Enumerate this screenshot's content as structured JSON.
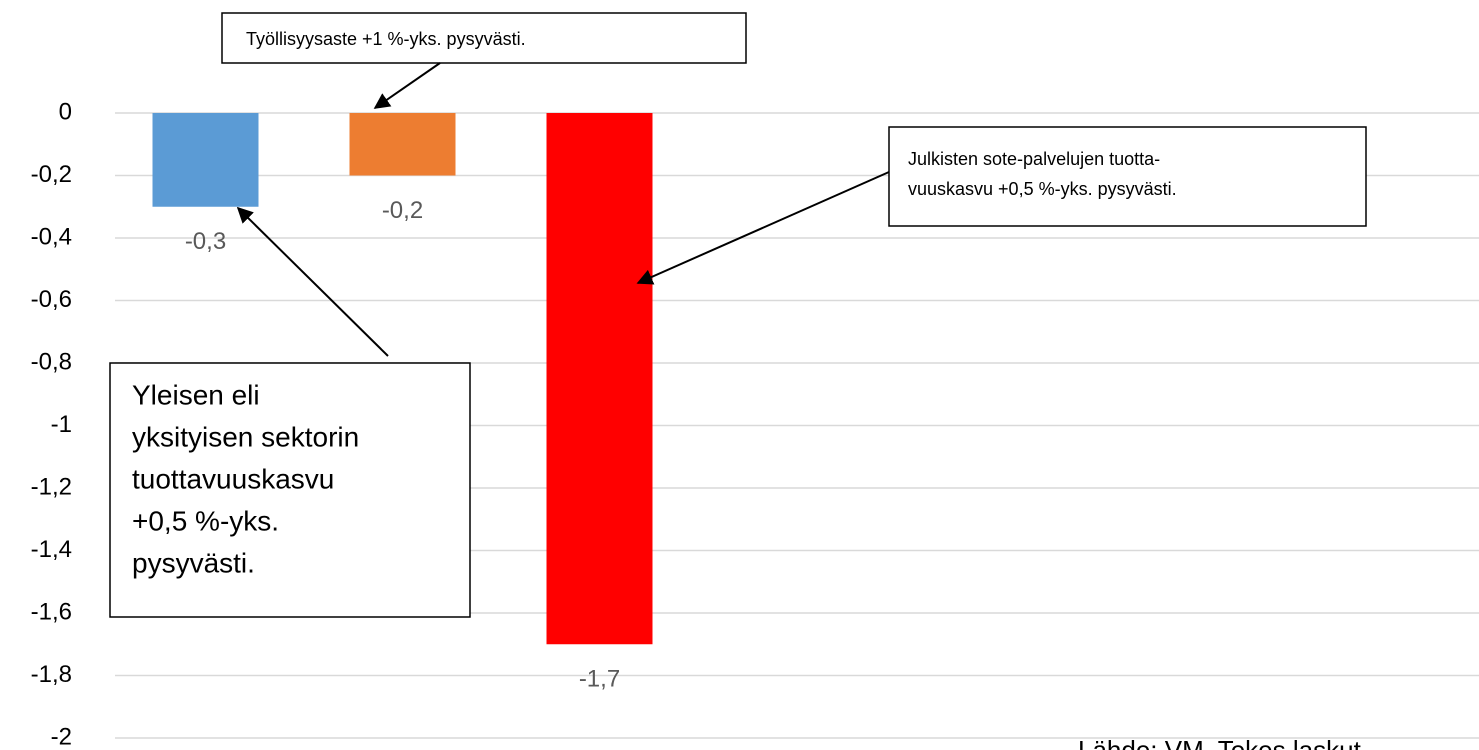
{
  "chart_data": {
    "type": "bar",
    "categories": [
      null,
      null,
      null
    ],
    "values": [
      -0.3,
      -0.2,
      -1.7
    ],
    "value_labels": [
      "-0,3",
      "-0,2",
      "-1,7"
    ],
    "colors": [
      "#5b9bd5",
      "#ed7d31",
      "#ff0000"
    ],
    "ylim": [
      -2,
      0
    ],
    "yticks": [
      {
        "value": 0,
        "label": "0"
      },
      {
        "value": -0.2,
        "label": "-0,2"
      },
      {
        "value": -0.4,
        "label": "-0,4"
      },
      {
        "value": -0.6,
        "label": "-0,6"
      },
      {
        "value": -0.8,
        "label": "-0,8"
      },
      {
        "value": -1,
        "label": "-1"
      },
      {
        "value": -1.2,
        "label": "-1,2"
      },
      {
        "value": -1.4,
        "label": "-1,4"
      },
      {
        "value": -1.6,
        "label": "-1,6"
      },
      {
        "value": -1.8,
        "label": "-1,8"
      },
      {
        "value": -2,
        "label": "-2"
      }
    ],
    "grid": true,
    "annotations": [
      {
        "lines": [
          "Työllisyysaste +1 %-yks. pysyvästi."
        ]
      },
      {
        "lines": [
          "Julkisten sote-palvelujen tuotta-",
          "vuuskasvu +0,5 %-yks. pysyvästi."
        ]
      },
      {
        "lines": [
          "Yleisen eli",
          "yksityisen sektorin",
          "tuottavuuskasvu",
          "+0,5 %-yks.",
          "pysyvästi."
        ]
      }
    ],
    "source": "Lähde: VM, Tekes laskut"
  }
}
